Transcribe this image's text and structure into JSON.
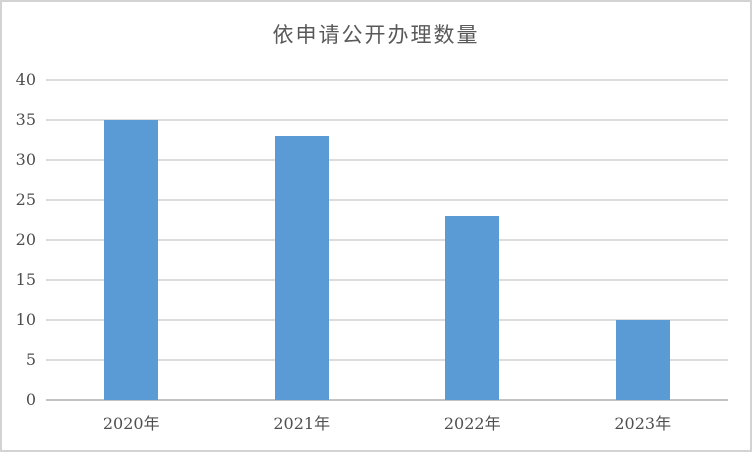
{
  "window": {
    "background": "#ffffff",
    "border_color": "#d3d3d3"
  },
  "chart_data": {
    "type": "bar",
    "title": "依申请公开办理数量",
    "categories": [
      "2020年",
      "2021年",
      "2022年",
      "2023年"
    ],
    "values": [
      35,
      33,
      23,
      10
    ],
    "xlabel": "",
    "ylabel": "",
    "ylim": [
      0,
      40
    ],
    "ytick_step": 5,
    "yticks": [
      0,
      5,
      10,
      15,
      20,
      25,
      30,
      35,
      40
    ],
    "grid": true,
    "legend": false,
    "bar_color": "#5b9bd5",
    "gridline_color": "#dcdcdc",
    "axis_line_color": "#c3c3c3",
    "tick_text_color": "#4f4f4f",
    "title_color": "#595959"
  }
}
